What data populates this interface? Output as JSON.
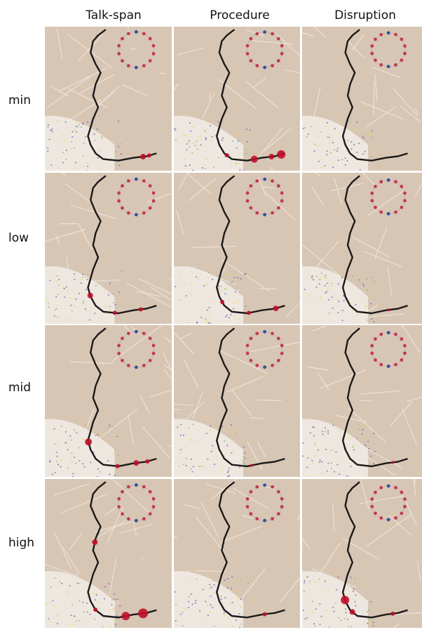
{
  "columns": [
    "Talk-span",
    "Procedure",
    "Disruption"
  ],
  "rows": [
    "min",
    "low",
    "mid",
    "high"
  ],
  "colors": {
    "map_background": "#d8c6b4",
    "route": "#1a1a1a",
    "marker": "#c0102a",
    "ring_node": "#c03a55",
    "ring_node_alt": "#3050a0",
    "street": "#f3ebe2"
  },
  "panels": [
    {
      "row": "min",
      "column": "Talk-span",
      "markers": [
        {
          "t": 0.93,
          "r": 4
        },
        {
          "t": 0.96,
          "r": 3
        }
      ]
    },
    {
      "row": "min",
      "column": "Procedure",
      "markers": [
        {
          "t": 0.74,
          "r": 3
        },
        {
          "t": 0.86,
          "r": 5
        },
        {
          "t": 0.93,
          "r": 4
        },
        {
          "t": 0.98,
          "r": 6
        }
      ]
    },
    {
      "row": "min",
      "column": "Disruption",
      "markers": []
    },
    {
      "row": "low",
      "column": "Talk-span",
      "markers": [
        {
          "t": 0.66,
          "r": 4
        },
        {
          "t": 0.82,
          "r": 3
        },
        {
          "t": 0.92,
          "r": 3
        }
      ]
    },
    {
      "row": "low",
      "column": "Procedure",
      "markers": [
        {
          "t": 0.7,
          "r": 3
        },
        {
          "t": 0.84,
          "r": 3
        },
        {
          "t": 0.95,
          "r": 4
        }
      ]
    },
    {
      "row": "low",
      "column": "Disruption",
      "markers": [
        {
          "t": 0.9,
          "r": 2
        }
      ]
    },
    {
      "row": "mid",
      "column": "Talk-span",
      "markers": [
        {
          "t": 0.62,
          "r": 5
        },
        {
          "t": 0.83,
          "r": 3
        },
        {
          "t": 0.9,
          "r": 4
        },
        {
          "t": 0.95,
          "r": 3
        }
      ]
    },
    {
      "row": "mid",
      "column": "Procedure",
      "markers": [
        {
          "t": 0.85,
          "r": 2
        }
      ]
    },
    {
      "row": "mid",
      "column": "Disruption",
      "markers": [
        {
          "t": 0.92,
          "r": 2
        }
      ]
    },
    {
      "row": "high",
      "column": "Talk-span",
      "markers": [
        {
          "t": 0.35,
          "r": 4
        },
        {
          "t": 0.72,
          "r": 3
        },
        {
          "t": 0.86,
          "r": 6
        },
        {
          "t": 0.93,
          "r": 7
        }
      ]
    },
    {
      "row": "high",
      "column": "Procedure",
      "markers": [
        {
          "t": 0.9,
          "r": 3
        }
      ]
    },
    {
      "row": "high",
      "column": "Disruption",
      "markers": [
        {
          "t": 0.66,
          "r": 6
        },
        {
          "t": 0.74,
          "r": 4
        },
        {
          "t": 0.92,
          "r": 3
        }
      ]
    }
  ]
}
